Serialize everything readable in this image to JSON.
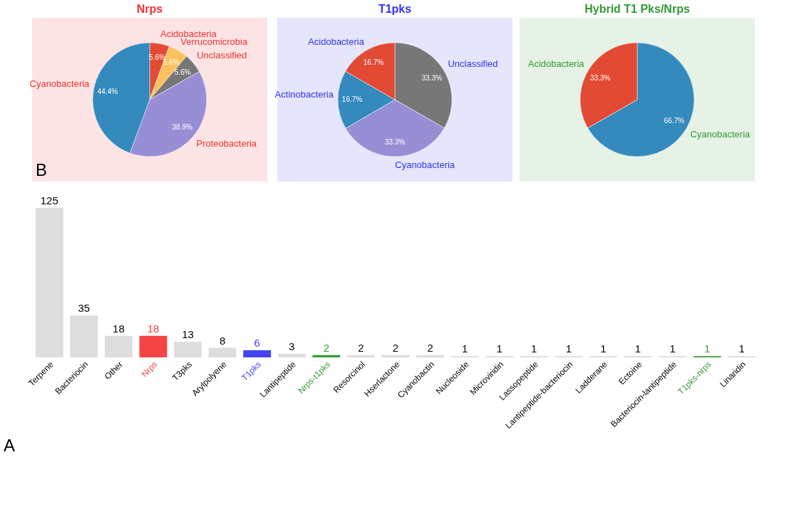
{
  "chart_data": [
    {
      "type": "pie",
      "title": "Nrps",
      "annotations": [
        "B"
      ],
      "value_labels": [
        "5.6%",
        "5.6%",
        "5.6%",
        "38.9%",
        "44.4%"
      ],
      "categories": [
        "Acidobacteria",
        "Verrucomicrobia",
        "Unclassified",
        "Proteobacteria",
        "Cyanobacteria"
      ],
      "values": [
        5.6,
        5.6,
        5.6,
        38.9,
        44.4
      ],
      "colors": [
        "#e24a33",
        "#fbc15e",
        "#777777",
        "#988ed5",
        "#348abd"
      ]
    },
    {
      "type": "pie",
      "title": "T1pks",
      "value_labels": [
        "33.3%",
        "33.3%",
        "16.7%",
        "16.7%"
      ],
      "categories": [
        "Unclassified",
        "Cyanobacteria",
        "Actinobacteria",
        "Acidobacteria"
      ],
      "values": [
        33.3,
        33.3,
        16.7,
        16.7
      ],
      "colors": [
        "#777777",
        "#988ed5",
        "#348abd",
        "#e24a33"
      ]
    },
    {
      "type": "pie",
      "title": "Hybrid T1 Pks/Nrps",
      "value_labels": [
        "66.7%",
        "33.3%"
      ],
      "categories": [
        "Cyanobacteria",
        "Acidobacteria"
      ],
      "values": [
        66.7,
        33.3
      ],
      "colors": [
        "#348abd",
        "#e24a33"
      ]
    },
    {
      "type": "bar",
      "annotations": [
        "A"
      ],
      "data_labels": true,
      "categories": [
        "Terpene",
        "Bacteriocin",
        "Other",
        "Nrps",
        "T3pks",
        "Arylpolyene",
        "T1pks",
        "Lantipeptide",
        "Nrps-t1pks",
        "Resorcinol",
        "Hserlactone",
        "Cyanobactin",
        "Nucleoside",
        "Microviridin",
        "Lassopeptide",
        "Lantipeptide-bacteriocin",
        "Ladderane",
        "Ectoine",
        "Bacteriocin-lantipeptide",
        "T1pks-nrps",
        "Linaridin"
      ],
      "values": [
        125,
        35,
        18,
        18,
        13,
        8,
        6,
        3,
        2,
        2,
        2,
        2,
        1,
        1,
        1,
        1,
        1,
        1,
        1,
        1,
        1
      ],
      "colors": [
        "#dddddd",
        "#dddddd",
        "#dddddd",
        "#f44444",
        "#dddddd",
        "#dddddd",
        "#4444f4",
        "#dddddd",
        "#3a9a3a",
        "#dddddd",
        "#dddddd",
        "#dddddd",
        "#dddddd",
        "#dddddd",
        "#dddddd",
        "#dddddd",
        "#dddddd",
        "#dddddd",
        "#dddddd",
        "#3a9a3a",
        "#dddddd"
      ]
    }
  ]
}
